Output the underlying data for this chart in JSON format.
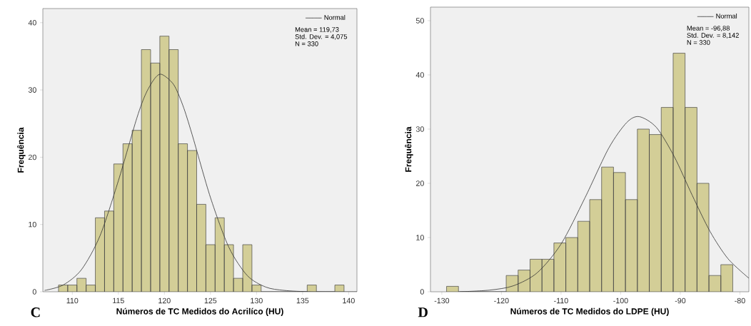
{
  "chart_data": [
    {
      "type": "histogram",
      "xlabel": "Números de TC Medidos do Acrilíco (HU)",
      "ylabel": "Frequência",
      "bins": [
        108.5,
        109.5,
        110.5,
        111.5,
        112.5,
        113.5,
        114.5,
        115.5,
        116.5,
        117.5,
        118.5,
        119.5,
        120.5,
        121.5,
        122.5,
        123.5,
        124.5,
        125.5,
        126.5,
        127.5,
        128.5,
        129.5,
        130.5,
        131.5,
        132.5,
        133.5,
        134.5,
        135.5,
        136.5,
        137.5,
        138.5,
        139.5
      ],
      "values": [
        1,
        1,
        2,
        1,
        11,
        12,
        19,
        22,
        24,
        36,
        34,
        38,
        36,
        22,
        21,
        13,
        7,
        11,
        7,
        2,
        7,
        1,
        0,
        0,
        0,
        0,
        0,
        1,
        0,
        0,
        1
      ],
      "color": "#d3ce97",
      "series": [
        {
          "name": "Normal",
          "type": "line",
          "color": "#333333",
          "x": [
            107,
            109,
            111,
            113,
            115,
            117,
            118,
            119,
            119.73,
            121,
            122,
            123,
            125,
            127,
            129,
            131,
            133,
            136,
            140.9
          ],
          "values": [
            0.2,
            1.0,
            3.3,
            8.3,
            16.5,
            25.8,
            29.5,
            31.8,
            32.3,
            30.8,
            27.7,
            23.4,
            14.0,
            6.6,
            2.4,
            0.7,
            0.2,
            0.0,
            0.0
          ]
        }
      ],
      "xlim": [
        106.8,
        140.9
      ],
      "ylim": [
        0,
        42.1
      ],
      "xticks": [
        110,
        115,
        120,
        125,
        130,
        135,
        140
      ],
      "yticks": [
        0,
        10,
        20,
        30,
        40
      ],
      "legend": "top right",
      "annotations": [
        "C",
        "Mean = 119,73",
        "Std. Dev. = 4,075",
        "N = 330"
      ]
    },
    {
      "type": "histogram",
      "xlabel": "Números de TC Medidos do LDPE (HU)",
      "ylabel": "Frequência",
      "bins": [
        -129.2,
        -127.2,
        -125.2,
        -123.2,
        -121.2,
        -119.2,
        -117.2,
        -115.2,
        -113.2,
        -111.2,
        -109.2,
        -107.2,
        -105.2,
        -103.2,
        -101.2,
        -99.2,
        -97.2,
        -95.2,
        -93.2,
        -91.2,
        -89.2,
        -87.2,
        -85.2,
        -83.2,
        -81.2
      ],
      "values": [
        1,
        0,
        0,
        0,
        0,
        3,
        4,
        6,
        6,
        9,
        10,
        13,
        17,
        23,
        22,
        17,
        30,
        29,
        34,
        44,
        34,
        20,
        3,
        5
      ],
      "color": "#d3ce97",
      "series": [
        {
          "name": "Normal",
          "type": "line",
          "color": "#333333",
          "x": [
            -127,
            -122,
            -118,
            -114,
            -110,
            -106,
            -102,
            -99,
            -96.88,
            -94,
            -91,
            -88,
            -85,
            -82,
            -78.5
          ],
          "values": [
            0.0,
            0.3,
            1.1,
            3.5,
            8.8,
            17.3,
            26.5,
            31.2,
            32.3,
            30.3,
            24.9,
            17.8,
            11.1,
            6.1,
            2.5
          ]
        }
      ],
      "xlim": [
        -131.9,
        -78.5
      ],
      "ylim": [
        0,
        52.5
      ],
      "xticks": [
        -130,
        -120,
        -110,
        -100,
        -90,
        -80
      ],
      "yticks": [
        0,
        10,
        20,
        30,
        40,
        50
      ],
      "legend": "top right",
      "annotations": [
        "D",
        "Mean = -96,88",
        "Std. Dev. = 8,142",
        "N = 330"
      ]
    }
  ]
}
